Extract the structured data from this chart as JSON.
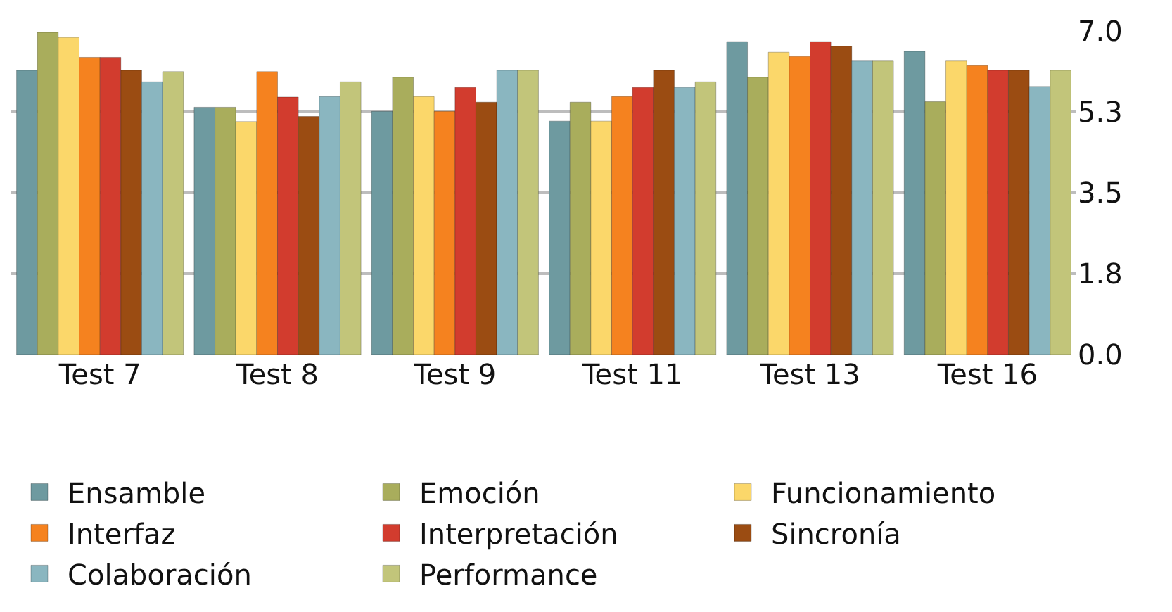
{
  "chart_data": {
    "type": "bar",
    "categories": [
      "Test 7",
      "Test 8",
      "Test 9",
      "Test 11",
      "Test 13",
      "Test 16"
    ],
    "series": [
      {
        "name": "Ensamble",
        "color": "#6e9aa0",
        "values": [
          6.15,
          5.35,
          5.26,
          5.05,
          6.77,
          6.56
        ]
      },
      {
        "name": "Emoción",
        "color": "#a9ad5c",
        "values": [
          6.97,
          5.35,
          6.0,
          5.46,
          6.0,
          5.47
        ]
      },
      {
        "name": "Funcionamiento",
        "color": "#fbd76a",
        "values": [
          6.86,
          5.04,
          5.58,
          5.05,
          6.54,
          6.35
        ]
      },
      {
        "name": "Interfaz",
        "color": "#f5821f",
        "values": [
          6.43,
          6.12,
          5.26,
          5.58,
          6.45,
          6.25
        ]
      },
      {
        "name": "Interpretación",
        "color": "#d23c2e",
        "values": [
          6.43,
          5.57,
          5.78,
          5.78,
          6.77,
          6.15
        ]
      },
      {
        "name": "Sincronía",
        "color": "#9b4c12",
        "values": [
          6.15,
          5.15,
          5.46,
          6.15,
          6.67,
          6.15
        ]
      },
      {
        "name": "Colaboración",
        "color": "#8ab6c0",
        "values": [
          5.9,
          5.58,
          6.15,
          5.78,
          6.35,
          5.8
        ]
      },
      {
        "name": "Performance",
        "color": "#c2c57a",
        "values": [
          6.12,
          5.9,
          6.15,
          5.9,
          6.35,
          6.15
        ]
      }
    ],
    "ylim": [
      0,
      7
    ],
    "yticks": [
      {
        "value": 0,
        "label": "0.0"
      },
      {
        "value": 1.75,
        "label": "1.8"
      },
      {
        "value": 3.5,
        "label": "3.5"
      },
      {
        "value": 5.25,
        "label": "5.3"
      },
      {
        "value": 7,
        "label": "7.0"
      }
    ],
    "grid": "y",
    "legend": "bottom"
  }
}
